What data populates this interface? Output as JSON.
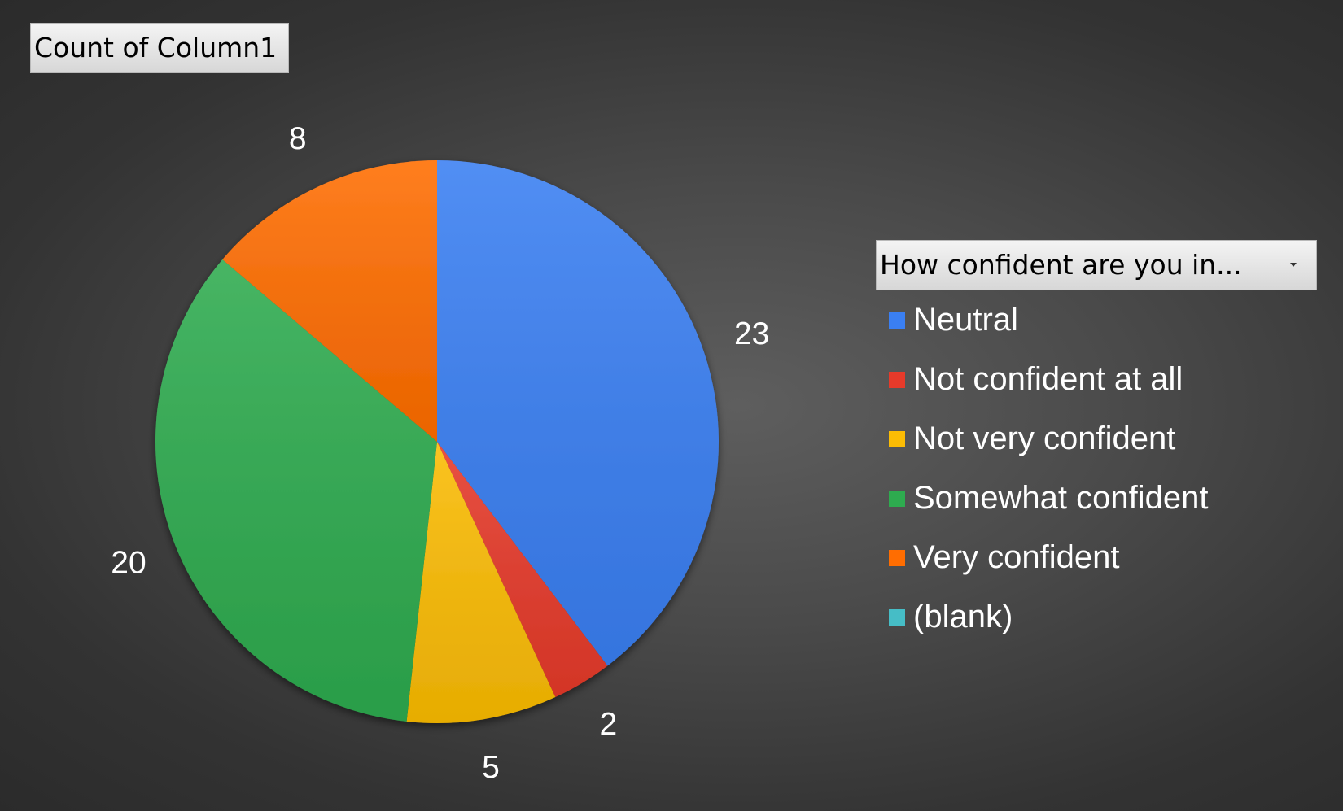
{
  "value_field": {
    "label": "Count of Column1"
  },
  "legend_field": {
    "label": "How confident are you in..."
  },
  "chart_data": {
    "type": "pie",
    "categories": [
      "Neutral",
      "Not confident at all",
      "Not very confident",
      "Somewhat confident",
      "Very confident",
      "(blank)"
    ],
    "values": [
      23,
      2,
      5,
      20,
      8,
      0
    ],
    "data_labels": [
      "23",
      "2",
      "5",
      "20",
      "8",
      ""
    ],
    "colors": [
      "#3a7ff2",
      "#e63a2a",
      "#fbbc04",
      "#2eab4f",
      "#ff6d01",
      "#46bdc6"
    ],
    "start_angle": "12 o'clock",
    "direction": "clockwise",
    "legend_position": "right",
    "title": ""
  }
}
